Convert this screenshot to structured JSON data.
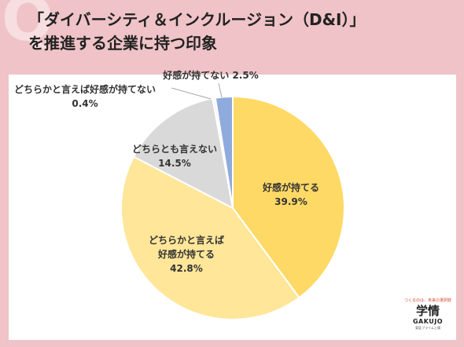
{
  "header": {
    "q": "Q",
    "title_line1": "「ダイバーシティ＆インクルージョン（D&I）」",
    "title_line2": "を推進する企業に持つ印象"
  },
  "logo": {
    "tagline": "つくるのは、未来の選択肢",
    "mark": "学情",
    "en": "GAKUJO",
    "sub": "東証プライム上場"
  },
  "chart_data": {
    "type": "pie",
    "start": "12 o'clock, clockwise",
    "slices": [
      {
        "label": "好感が持てる",
        "value": 39.9,
        "display": "39.9%",
        "color": "#ffd966"
      },
      {
        "label": "どちらかと言えば\n好感が持てる",
        "value": 42.8,
        "display": "42.8%",
        "color": "#ffe699"
      },
      {
        "label": "どちらとも言えない",
        "value": 14.5,
        "display": "14.5%",
        "color": "#d9d9d9"
      },
      {
        "label": "どちらかと言えば好感が持てない",
        "value": 0.4,
        "display": "0.4%",
        "color": "#f2f2f2"
      },
      {
        "label": "好感が持てない",
        "value": 2.5,
        "display": "2.5%",
        "color": "#8faadc"
      }
    ]
  }
}
